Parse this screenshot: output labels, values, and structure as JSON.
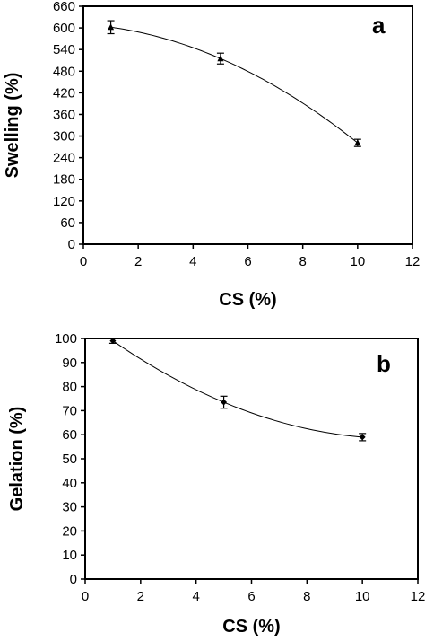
{
  "chart_data": [
    {
      "type": "scatter",
      "title": "",
      "panel_label": "a",
      "xlabel": "CS (%)",
      "ylabel": "Swelling (%)",
      "xlim": [
        0,
        12
      ],
      "ylim": [
        0,
        660
      ],
      "xticks": [
        "0",
        "2",
        "4",
        "6",
        "8",
        "10",
        "12"
      ],
      "yticks": [
        "0",
        "60",
        "120",
        "180",
        "240",
        "300",
        "360",
        "420",
        "480",
        "540",
        "600",
        "660"
      ],
      "marker": "triangle",
      "trendline": "polynomial",
      "grid": false,
      "series": [
        {
          "x": [
            1,
            5,
            10
          ],
          "y": [
            602,
            515,
            281
          ],
          "error": [
            18,
            15,
            10
          ]
        }
      ]
    },
    {
      "type": "scatter",
      "title": "",
      "panel_label": "b",
      "xlabel": "CS (%)",
      "ylabel": "Gelation (%)",
      "xlim": [
        0,
        12
      ],
      "ylim": [
        0,
        100
      ],
      "xticks": [
        "0",
        "2",
        "4",
        "6",
        "8",
        "10",
        "12"
      ],
      "yticks": [
        "0",
        "10",
        "20",
        "30",
        "40",
        "50",
        "60",
        "70",
        "80",
        "90",
        "100"
      ],
      "marker": "diamond",
      "trendline": "polynomial",
      "grid": false,
      "series": [
        {
          "x": [
            1,
            5,
            10
          ],
          "y": [
            99,
            73.5,
            59
          ],
          "error": [
            1,
            2.5,
            1.5
          ]
        }
      ]
    }
  ]
}
